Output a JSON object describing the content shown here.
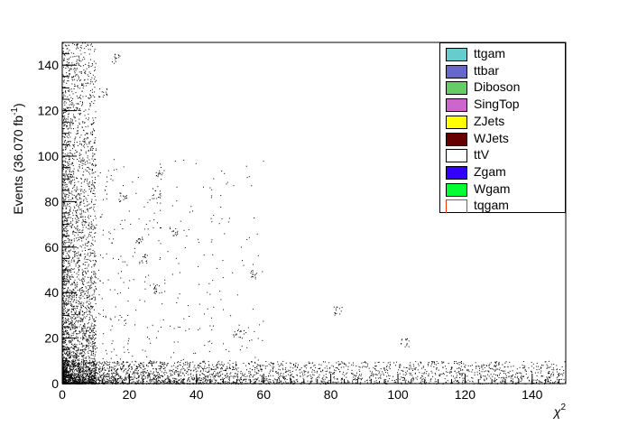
{
  "chart_data": {
    "type": "scatter",
    "xlabel": "χ",
    "xlabel_superscript": "2",
    "ylabel": "Events (36.070 fb",
    "ylabel_superscript": "-1",
    "ylabel_close": ")",
    "xlim": [
      0,
      150
    ],
    "ylim": [
      0,
      150
    ],
    "x_ticks": [
      0,
      20,
      40,
      60,
      80,
      100,
      120,
      140
    ],
    "y_ticks": [
      0,
      20,
      40,
      60,
      80,
      100,
      120,
      140
    ],
    "grid": false,
    "legend_placement": "top-right",
    "marker_color": "#000000",
    "point_density_description_values": {
      "dense_band_x_max": 10,
      "dense_band_y_max": 10,
      "tail_x_max": 150
    },
    "clusters": [
      {
        "x": 16,
        "y": 143
      },
      {
        "x": 12,
        "y": 128
      },
      {
        "x": 29,
        "y": 92
      },
      {
        "x": 28,
        "y": 83
      },
      {
        "x": 18,
        "y": 82
      },
      {
        "x": 33,
        "y": 67
      },
      {
        "x": 23,
        "y": 63
      },
      {
        "x": 24,
        "y": 55
      },
      {
        "x": 28,
        "y": 42
      },
      {
        "x": 57,
        "y": 48
      },
      {
        "x": 82,
        "y": 32
      },
      {
        "x": 52,
        "y": 22
      },
      {
        "x": 102,
        "y": 18
      },
      {
        "x": 128,
        "y": 8
      },
      {
        "x": 118,
        "y": 6
      }
    ],
    "legend": [
      {
        "label": "ttgam",
        "color": "#66cccc",
        "style": "filled"
      },
      {
        "label": "ttbar",
        "color": "#6666cc",
        "style": "filled"
      },
      {
        "label": "Diboson",
        "color": "#66cc66",
        "style": "filled"
      },
      {
        "label": "SingTop",
        "color": "#cc66cc",
        "style": "filled"
      },
      {
        "label": "ZJets",
        "color": "#ffff00",
        "style": "filled"
      },
      {
        "label": "WJets",
        "color": "#660000",
        "style": "filled"
      },
      {
        "label": "ttV",
        "color": "#ffffff",
        "style": "filled"
      },
      {
        "label": "Zgam",
        "color": "#3300ff",
        "style": "filled"
      },
      {
        "label": "Wgam",
        "color": "#00ff33",
        "style": "filled"
      },
      {
        "label": "tqgam",
        "color": "#ff3300",
        "style": "line"
      }
    ]
  }
}
